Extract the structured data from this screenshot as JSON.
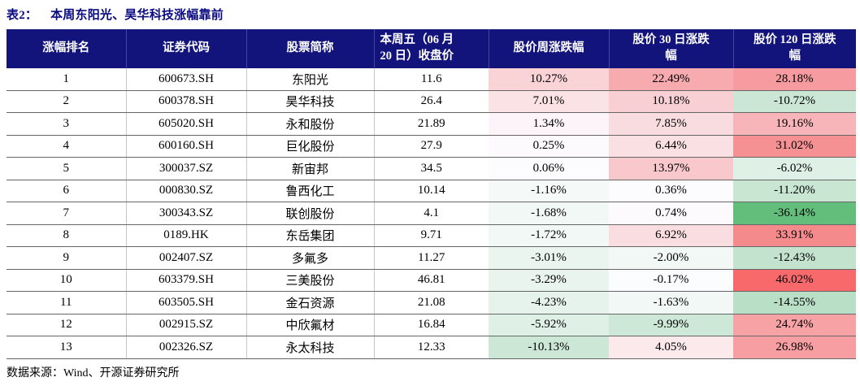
{
  "title": {
    "label": "表2：",
    "text": "本周东阳光、昊华科技涨幅靠前"
  },
  "source_note": "数据来源：Wind、开源证券研究所",
  "colors": {
    "title_color": "#0A0A80",
    "header_bg": "#13137C",
    "header_text": "#FFFFFF",
    "header_sep": "#4646A0",
    "row_line": "#666666",
    "grid_line": "#C9C9C9",
    "heat_max_red": "#F8696B",
    "heat_mid_white": "#FCFCFF",
    "heat_min_green": "#63BE7B"
  },
  "table": {
    "headers": [
      "涨幅排名",
      "证券代码",
      "股票简称",
      "本周五（06 月\n20 日）收盘价",
      "股价周涨跌幅",
      "股价 30 日涨跌\n幅",
      "股价 120 日涨跌\n幅"
    ],
    "heat_scale_note": "red=max +46.02%, white=0%, green=min -36.14%",
    "rows": [
      {
        "rank": "1",
        "code": "600673.SH",
        "name": "东阳光",
        "close": "11.6",
        "week": {
          "text": "10.27%",
          "bg": "#FAD3D7"
        },
        "m30": {
          "text": "22.49%",
          "bg": "#F7ABAF"
        },
        "m120": {
          "text": "28.18%",
          "bg": "#F69CA0"
        }
      },
      {
        "rank": "2",
        "code": "600378.SH",
        "name": "昊华科技",
        "close": "26.4",
        "week": {
          "text": "7.01%",
          "bg": "#FBE2E5"
        },
        "m30": {
          "text": "10.18%",
          "bg": "#F8D0D4"
        },
        "m120": {
          "text": "-10.72%",
          "bg": "#CBE6D4"
        }
      },
      {
        "rank": "3",
        "code": "605020.SH",
        "name": "永和股份",
        "close": "21.89",
        "week": {
          "text": "1.34%",
          "bg": "#FCF4F8"
        },
        "m30": {
          "text": "7.85%",
          "bg": "#F9DCE0"
        },
        "m120": {
          "text": "19.16%",
          "bg": "#F7B5B9"
        }
      },
      {
        "rank": "4",
        "code": "600160.SH",
        "name": "巨化股份",
        "close": "27.9",
        "week": {
          "text": "0.25%",
          "bg": "#FCFAFD"
        },
        "m30": {
          "text": "6.44%",
          "bg": "#FADFE3"
        },
        "m120": {
          "text": "31.02%",
          "bg": "#F59093"
        }
      },
      {
        "rank": "5",
        "code": "300037.SZ",
        "name": "新宙邦",
        "close": "34.5",
        "week": {
          "text": "0.06%",
          "bg": "#FCFCFF"
        },
        "m30": {
          "text": "13.97%",
          "bg": "#F9C8CC"
        },
        "m120": {
          "text": "-6.02%",
          "bg": "#DFF0E6"
        }
      },
      {
        "rank": "6",
        "code": "000830.SZ",
        "name": "鲁西化工",
        "close": "10.14",
        "week": {
          "text": "-1.16%",
          "bg": "#F5F9F8"
        },
        "m30": {
          "text": "0.36%",
          "bg": "#FCFBFE"
        },
        "m120": {
          "text": "-11.20%",
          "bg": "#C9E6D3"
        }
      },
      {
        "rank": "7",
        "code": "300343.SZ",
        "name": "联创股份",
        "close": "4.1",
        "week": {
          "text": "-1.68%",
          "bg": "#F2F8F5"
        },
        "m30": {
          "text": "0.74%",
          "bg": "#FCFAFD"
        },
        "m120": {
          "text": "-36.14%",
          "bg": "#63BE7B"
        }
      },
      {
        "rank": "8",
        "code": "0189.HK",
        "name": "东岳集团",
        "close": "9.71",
        "week": {
          "text": "-1.72%",
          "bg": "#F2F8F5"
        },
        "m30": {
          "text": "6.92%",
          "bg": "#FADDE0"
        },
        "m120": {
          "text": "33.91%",
          "bg": "#F58A8D"
        }
      },
      {
        "rank": "9",
        "code": "002407.SZ",
        "name": "多氟多",
        "close": "11.27",
        "week": {
          "text": "-3.01%",
          "bg": "#EBF5F0"
        },
        "m30": {
          "text": "-2.00%",
          "bg": "#F2F8F6"
        },
        "m120": {
          "text": "-12.43%",
          "bg": "#C3E3CE"
        }
      },
      {
        "rank": "10",
        "code": "603379.SH",
        "name": "三美股份",
        "close": "46.81",
        "week": {
          "text": "-3.29%",
          "bg": "#EAF4EF"
        },
        "m30": {
          "text": "-0.17%",
          "bg": "#FBFCFE"
        },
        "m120": {
          "text": "46.02%",
          "bg": "#F8696B"
        }
      },
      {
        "rank": "11",
        "code": "603505.SH",
        "name": "金石资源",
        "close": "21.08",
        "week": {
          "text": "-4.23%",
          "bg": "#E6F3EC"
        },
        "m30": {
          "text": "-1.63%",
          "bg": "#F2F8F5"
        },
        "m120": {
          "text": "-14.55%",
          "bg": "#BADFC7"
        }
      },
      {
        "rank": "12",
        "code": "002915.SZ",
        "name": "中欣氟材",
        "close": "16.84",
        "week": {
          "text": "-5.92%",
          "bg": "#DFF0E6"
        },
        "m30": {
          "text": "-9.99%",
          "bg": "#CEE8D7"
        },
        "m120": {
          "text": "24.74%",
          "bg": "#F7A3A6"
        }
      },
      {
        "rank": "13",
        "code": "002326.SZ",
        "name": "永太科技",
        "close": "12.33",
        "week": {
          "text": "-10.13%",
          "bg": "#CDE7D6"
        },
        "m30": {
          "text": "4.05%",
          "bg": "#FBE9EC"
        },
        "m120": {
          "text": "26.98%",
          "bg": "#F69EA2"
        }
      }
    ]
  }
}
